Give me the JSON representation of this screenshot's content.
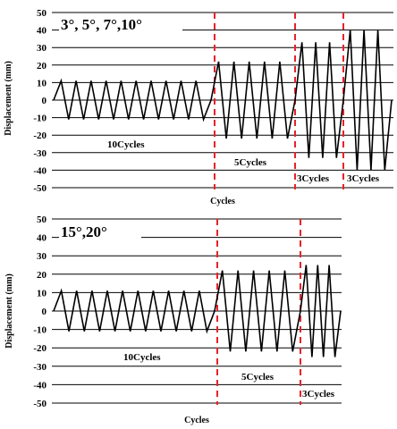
{
  "chart_data": [
    {
      "type": "line",
      "title": "3°, 5°, 7°,10°",
      "xlabel": "Cycles",
      "ylabel": "Displacement (mm)",
      "ylim": [
        -50,
        50
      ],
      "yticks": [
        "50",
        "40",
        "30",
        "20",
        "10",
        "0",
        "-10",
        "-20",
        "-30",
        "-40",
        "-50"
      ],
      "grid": "horizontal",
      "series": [
        {
          "values": [
            0,
            11,
            -11,
            11,
            -11,
            11,
            -11,
            11,
            -11,
            11,
            -11,
            11,
            -11,
            11,
            -11,
            11,
            -11,
            11,
            -11,
            11,
            -11,
            0,
            22,
            -22,
            22,
            -22,
            22,
            -22,
            22,
            -22,
            22,
            -22,
            0,
            33,
            -33,
            33,
            -33,
            33,
            -33,
            0,
            40,
            -40,
            40,
            -40,
            40,
            -40,
            0
          ]
        }
      ],
      "annotations": [
        "10Cycles",
        "5Cycles",
        "3Cycles",
        "3Cycles"
      ],
      "divider_color": "#e8222a"
    },
    {
      "type": "line",
      "title": "15°,20°",
      "xlabel": "Cycles",
      "ylabel": "Displacement (mm)",
      "ylim": [
        -50,
        50
      ],
      "yticks": [
        "50",
        "40",
        "30",
        "20",
        "10",
        "0",
        "-10",
        "-20",
        "-30",
        "-40",
        "-50"
      ],
      "grid": "horizontal",
      "series": [
        {
          "values": [
            0,
            11,
            -11,
            11,
            -11,
            11,
            -11,
            11,
            -11,
            11,
            -11,
            11,
            -11,
            11,
            -11,
            11,
            -11,
            11,
            -11,
            11,
            -11,
            0,
            22,
            -22,
            22,
            -22,
            22,
            -22,
            22,
            -22,
            22,
            -22,
            0,
            25,
            -25,
            25,
            -25,
            25,
            -25,
            0
          ]
        }
      ],
      "annotations": [
        "10Cycles",
        "5Cycles",
        "3Cycles"
      ],
      "divider_color": "#e8222a"
    }
  ]
}
